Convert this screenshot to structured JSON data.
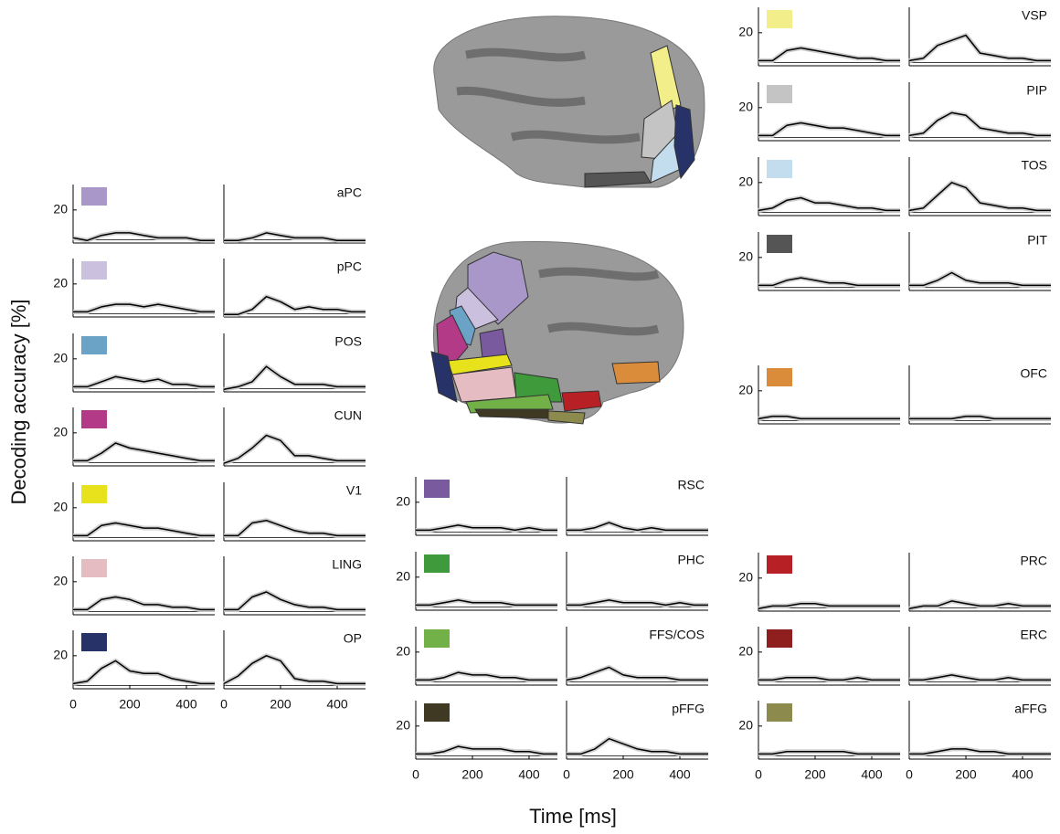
{
  "figure": {
    "y_label": "Decoding accuracy [%]",
    "x_label": "Time [ms]"
  },
  "chart_data": [
    {
      "type": "line",
      "title": "aPC",
      "color": "#a897c8",
      "x": [
        0,
        50,
        100,
        150,
        200,
        250,
        300,
        350,
        400,
        450,
        500
      ],
      "xlim": [
        0,
        500
      ],
      "ylim": [
        7,
        30
      ],
      "yticks": [
        20
      ],
      "reference": 8.3,
      "series": [
        {
          "values": [
            9,
            8,
            10,
            11,
            11,
            10,
            9,
            9,
            9,
            8,
            8
          ]
        },
        {
          "values": [
            8,
            8,
            9,
            11,
            10,
            9,
            9,
            9,
            8,
            8,
            8
          ]
        }
      ]
    },
    {
      "type": "line",
      "title": "pPC",
      "color": "#cbc1df",
      "x": [
        0,
        50,
        100,
        150,
        200,
        250,
        300,
        350,
        400,
        450,
        500
      ],
      "xlim": [
        0,
        500
      ],
      "ylim": [
        7,
        30
      ],
      "yticks": [
        20
      ],
      "reference": 8.3,
      "series": [
        {
          "values": [
            9,
            9,
            11,
            12,
            12,
            11,
            12,
            11,
            10,
            9,
            9
          ]
        },
        {
          "values": [
            8,
            8,
            10,
            15,
            13,
            10,
            11,
            10,
            10,
            9,
            9
          ]
        }
      ]
    },
    {
      "type": "line",
      "title": "POS",
      "color": "#6aa3c6",
      "x": [
        0,
        50,
        100,
        150,
        200,
        250,
        300,
        350,
        400,
        450,
        500
      ],
      "xlim": [
        0,
        500
      ],
      "ylim": [
        7,
        30
      ],
      "yticks": [
        20
      ],
      "reference": 8.3,
      "series": [
        {
          "values": [
            9,
            9,
            11,
            13,
            12,
            11,
            12,
            10,
            10,
            9,
            9
          ]
        },
        {
          "values": [
            8,
            9,
            11,
            17,
            13,
            10,
            10,
            10,
            9,
            9,
            9
          ]
        }
      ]
    },
    {
      "type": "line",
      "title": "CUN",
      "color": "#b23a86",
      "x": [
        0,
        50,
        100,
        150,
        200,
        250,
        300,
        350,
        400,
        450,
        500
      ],
      "xlim": [
        0,
        500
      ],
      "ylim": [
        7,
        30
      ],
      "yticks": [
        20
      ],
      "reference": 8.3,
      "series": [
        {
          "values": [
            9,
            9,
            12,
            16,
            14,
            13,
            12,
            11,
            10,
            9,
            9
          ]
        },
        {
          "values": [
            8,
            10,
            14,
            19,
            17,
            11,
            11,
            10,
            9,
            9,
            9
          ]
        }
      ]
    },
    {
      "type": "line",
      "title": "V1",
      "color": "#e8e21c",
      "x": [
        0,
        50,
        100,
        150,
        200,
        250,
        300,
        350,
        400,
        450,
        500
      ],
      "xlim": [
        0,
        500
      ],
      "ylim": [
        7,
        30
      ],
      "yticks": [
        20
      ],
      "reference": 8.3,
      "series": [
        {
          "values": [
            9,
            9,
            13,
            14,
            13,
            12,
            12,
            11,
            10,
            9,
            9
          ]
        },
        {
          "values": [
            9,
            9,
            14,
            15,
            13,
            11,
            10,
            10,
            9,
            9,
            9
          ]
        }
      ]
    },
    {
      "type": "line",
      "title": "LING",
      "color": "#e5bcc2",
      "x": [
        0,
        50,
        100,
        150,
        200,
        250,
        300,
        350,
        400,
        450,
        500
      ],
      "xlim": [
        0,
        500
      ],
      "ylim": [
        7,
        30
      ],
      "yticks": [
        20
      ],
      "reference": 8.3,
      "series": [
        {
          "values": [
            9,
            9,
            13,
            14,
            13,
            11,
            11,
            10,
            10,
            9,
            9
          ]
        },
        {
          "values": [
            9,
            9,
            14,
            16,
            13,
            11,
            10,
            10,
            9,
            9,
            9
          ]
        }
      ]
    },
    {
      "type": "line",
      "title": "OP",
      "color": "#263268",
      "x": [
        0,
        50,
        100,
        150,
        200,
        250,
        300,
        350,
        400,
        450,
        500
      ],
      "xlim": [
        0,
        500
      ],
      "ylim": [
        7,
        30
      ],
      "yticks": [
        20
      ],
      "xticks": [
        0,
        200,
        400
      ],
      "reference": 8.3,
      "series": [
        {
          "values": [
            9,
            10,
            15,
            18,
            14,
            13,
            13,
            11,
            10,
            9,
            9
          ]
        },
        {
          "values": [
            9,
            12,
            17,
            20,
            18,
            11,
            10,
            10,
            9,
            9,
            9
          ]
        }
      ]
    },
    {
      "type": "line",
      "title": "RSC",
      "color": "#7a5a9e",
      "x": [
        0,
        50,
        100,
        150,
        200,
        250,
        300,
        350,
        400,
        450,
        500
      ],
      "xlim": [
        0,
        500
      ],
      "ylim": [
        7,
        30
      ],
      "yticks": [
        20
      ],
      "reference": 8.3,
      "series": [
        {
          "values": [
            9,
            9,
            10,
            11,
            10,
            10,
            10,
            9,
            10,
            9,
            9
          ]
        },
        {
          "values": [
            9,
            9,
            10,
            12,
            10,
            9,
            10,
            9,
            9,
            9,
            9
          ]
        }
      ]
    },
    {
      "type": "line",
      "title": "PHC",
      "color": "#3e9a3a",
      "x": [
        0,
        50,
        100,
        150,
        200,
        250,
        300,
        350,
        400,
        450,
        500
      ],
      "xlim": [
        0,
        500
      ],
      "ylim": [
        7,
        30
      ],
      "yticks": [
        20
      ],
      "reference": 8.3,
      "series": [
        {
          "values": [
            9,
            9,
            10,
            11,
            10,
            10,
            10,
            9,
            9,
            9,
            9
          ]
        },
        {
          "values": [
            9,
            9,
            10,
            11,
            10,
            10,
            10,
            9,
            10,
            9,
            9
          ]
        }
      ]
    },
    {
      "type": "line",
      "title": "FFS/COS",
      "color": "#72b048",
      "x": [
        0,
        50,
        100,
        150,
        200,
        250,
        300,
        350,
        400,
        450,
        500
      ],
      "xlim": [
        0,
        500
      ],
      "ylim": [
        7,
        30
      ],
      "yticks": [
        20
      ],
      "reference": 8.3,
      "series": [
        {
          "values": [
            9,
            9,
            10,
            12,
            11,
            11,
            10,
            10,
            9,
            9,
            9
          ]
        },
        {
          "values": [
            9,
            10,
            12,
            14,
            11,
            10,
            10,
            10,
            9,
            9,
            9
          ]
        }
      ]
    },
    {
      "type": "line",
      "title": "pFFG",
      "color": "#3f3823",
      "x": [
        0,
        50,
        100,
        150,
        200,
        250,
        300,
        350,
        400,
        450,
        500
      ],
      "xlim": [
        0,
        500
      ],
      "ylim": [
        7,
        30
      ],
      "yticks": [
        20
      ],
      "xticks": [
        0,
        200,
        400
      ],
      "reference": 8.3,
      "series": [
        {
          "values": [
            9,
            9,
            10,
            12,
            11,
            11,
            11,
            10,
            10,
            9,
            9
          ]
        },
        {
          "values": [
            9,
            9,
            11,
            15,
            13,
            11,
            10,
            10,
            9,
            9,
            9
          ]
        }
      ]
    },
    {
      "type": "line",
      "title": "VSP",
      "color": "#f2ee8a",
      "x": [
        0,
        50,
        100,
        150,
        200,
        250,
        300,
        350,
        400,
        450,
        500
      ],
      "xlim": [
        0,
        500
      ],
      "ylim": [
        7,
        30
      ],
      "yticks": [
        20
      ],
      "reference": 8.3,
      "series": [
        {
          "values": [
            9,
            9,
            13,
            14,
            13,
            12,
            11,
            10,
            10,
            9,
            9
          ]
        },
        {
          "values": [
            9,
            10,
            15,
            17,
            19,
            12,
            11,
            10,
            10,
            9,
            9
          ]
        }
      ]
    },
    {
      "type": "line",
      "title": "PIP",
      "color": "#c4c4c4",
      "x": [
        0,
        50,
        100,
        150,
        200,
        250,
        300,
        350,
        400,
        450,
        500
      ],
      "xlim": [
        0,
        500
      ],
      "ylim": [
        7,
        30
      ],
      "yticks": [
        20
      ],
      "reference": 8.3,
      "series": [
        {
          "values": [
            9,
            9,
            13,
            14,
            13,
            12,
            12,
            11,
            10,
            9,
            9
          ]
        },
        {
          "values": [
            9,
            10,
            15,
            18,
            17,
            12,
            11,
            10,
            10,
            9,
            9
          ]
        }
      ]
    },
    {
      "type": "line",
      "title": "TOS",
      "color": "#c3ddee",
      "x": [
        0,
        50,
        100,
        150,
        200,
        250,
        300,
        350,
        400,
        450,
        500
      ],
      "xlim": [
        0,
        500
      ],
      "ylim": [
        7,
        30
      ],
      "yticks": [
        20
      ],
      "reference": 8.3,
      "series": [
        {
          "values": [
            9,
            10,
            13,
            14,
            12,
            12,
            11,
            10,
            10,
            9,
            9
          ]
        },
        {
          "values": [
            9,
            10,
            15,
            20,
            18,
            12,
            11,
            10,
            10,
            9,
            9
          ]
        }
      ]
    },
    {
      "type": "line",
      "title": "PIT",
      "color": "#555555",
      "x": [
        0,
        50,
        100,
        150,
        200,
        250,
        300,
        350,
        400,
        450,
        500
      ],
      "xlim": [
        0,
        500
      ],
      "ylim": [
        7,
        30
      ],
      "yticks": [
        20
      ],
      "reference": 8.3,
      "series": [
        {
          "values": [
            9,
            9,
            11,
            12,
            11,
            10,
            10,
            9,
            9,
            9,
            9
          ]
        },
        {
          "values": [
            9,
            9,
            11,
            14,
            11,
            10,
            10,
            10,
            9,
            9,
            9
          ]
        }
      ]
    },
    {
      "type": "line",
      "title": "OFC",
      "color": "#db8c3a",
      "x": [
        0,
        50,
        100,
        150,
        200,
        250,
        300,
        350,
        400,
        450,
        500
      ],
      "xlim": [
        0,
        500
      ],
      "ylim": [
        7,
        30
      ],
      "yticks": [
        20
      ],
      "reference": 8.3,
      "series": [
        {
          "values": [
            9,
            10,
            10,
            9,
            9,
            9,
            9,
            9,
            9,
            9,
            9
          ]
        },
        {
          "values": [
            9,
            9,
            9,
            9,
            10,
            10,
            9,
            9,
            9,
            9,
            9
          ]
        }
      ]
    },
    {
      "type": "line",
      "title": "PRC",
      "color": "#b72025",
      "x": [
        0,
        50,
        100,
        150,
        200,
        250,
        300,
        350,
        400,
        450,
        500
      ],
      "xlim": [
        0,
        500
      ],
      "ylim": [
        7,
        30
      ],
      "yticks": [
        20
      ],
      "reference": 8.3,
      "series": [
        {
          "values": [
            8,
            9,
            9,
            10,
            10,
            9,
            9,
            9,
            9,
            9,
            9
          ]
        },
        {
          "values": [
            8,
            9,
            9,
            11,
            10,
            9,
            9,
            10,
            9,
            9,
            9
          ]
        }
      ]
    },
    {
      "type": "line",
      "title": "ERC",
      "color": "#8f1f1f",
      "x": [
        0,
        50,
        100,
        150,
        200,
        250,
        300,
        350,
        400,
        450,
        500
      ],
      "xlim": [
        0,
        500
      ],
      "ylim": [
        7,
        30
      ],
      "yticks": [
        20
      ],
      "reference": 8.3,
      "series": [
        {
          "values": [
            9,
            9,
            10,
            10,
            10,
            9,
            9,
            10,
            9,
            9,
            9
          ]
        },
        {
          "values": [
            9,
            9,
            10,
            11,
            10,
            9,
            9,
            10,
            9,
            9,
            9
          ]
        }
      ]
    },
    {
      "type": "line",
      "title": "aFFG",
      "color": "#8c8a4c",
      "x": [
        0,
        50,
        100,
        150,
        200,
        250,
        300,
        350,
        400,
        450,
        500
      ],
      "xlim": [
        0,
        500
      ],
      "ylim": [
        7,
        30
      ],
      "yticks": [
        20
      ],
      "xticks": [
        0,
        200,
        400
      ],
      "reference": 8.3,
      "series": [
        {
          "values": [
            9,
            9,
            10,
            10,
            10,
            10,
            10,
            9,
            9,
            9,
            9
          ]
        },
        {
          "values": [
            9,
            9,
            10,
            11,
            11,
            10,
            10,
            9,
            9,
            9,
            9
          ]
        }
      ]
    }
  ]
}
